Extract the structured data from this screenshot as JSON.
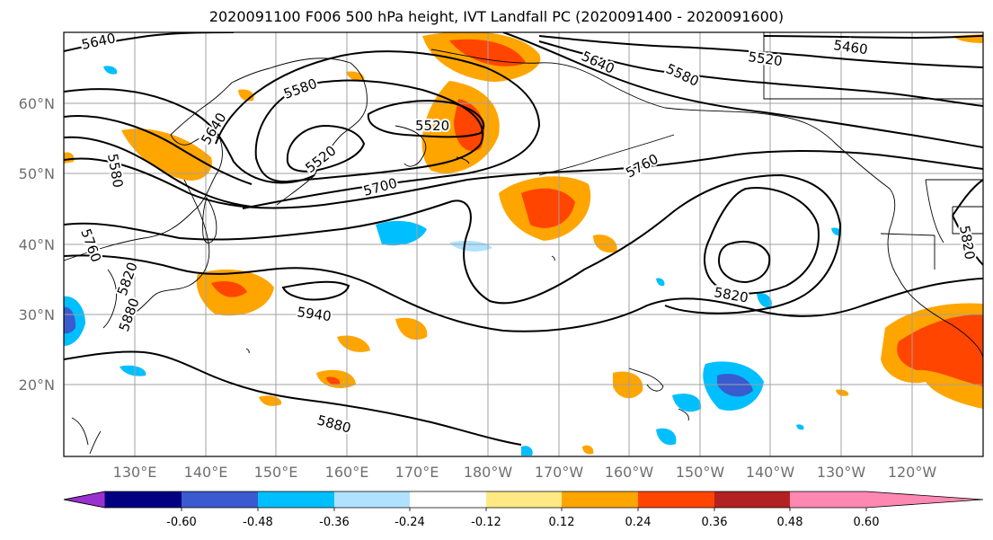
{
  "title": "2020091100 F006 500 hPa height, IVT Landfall PC (2020091400 - 2020091600)",
  "map": {
    "lat_labels": [
      "60°N",
      "50°N",
      "40°N",
      "30°N",
      "20°N"
    ],
    "lon_labels": [
      "130°E",
      "140°E",
      "150°E",
      "160°E",
      "170°E",
      "180°W",
      "170°W",
      "160°W",
      "150°W",
      "140°W",
      "130°W",
      "120°W"
    ],
    "contour_labels": [
      "5640",
      "5580",
      "5520",
      "5520",
      "5640",
      "5460",
      "5520",
      "5580",
      "5640",
      "5580",
      "5700",
      "5760",
      "5820",
      "5760",
      "5820",
      "5880",
      "5820",
      "5820",
      "5940",
      "5880"
    ]
  },
  "colorbar": {
    "colors": [
      "#9b30d0",
      "#000080",
      "#3a5bcf",
      "#00bfff",
      "#b0e2ff",
      "#ffffff",
      "#ffe985",
      "#ffa500",
      "#ff4500",
      "#b22222",
      "#ff88b2"
    ],
    "tick_labels": [
      "-0.60",
      "-0.48",
      "-0.36",
      "-0.24",
      "-0.12",
      "0.12",
      "0.24",
      "0.36",
      "0.48",
      "0.60"
    ]
  }
}
